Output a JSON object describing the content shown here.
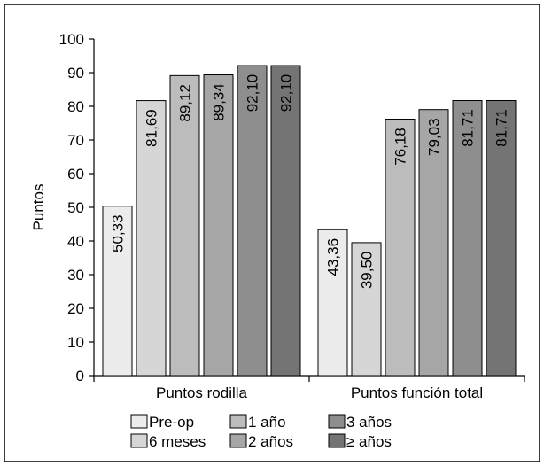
{
  "chart_data": {
    "type": "bar",
    "ylabel": "Puntos",
    "ylim": [
      0,
      100
    ],
    "yticks": [
      0,
      10,
      20,
      30,
      40,
      50,
      60,
      70,
      80,
      90,
      100
    ],
    "grid": false,
    "legend_position": "bottom",
    "categories": [
      "Puntos rodilla",
      "Puntos función total"
    ],
    "series": [
      {
        "name": "Pre-op",
        "color": "#ececec",
        "values": [
          50.33,
          43.36
        ],
        "labels": [
          "50,33",
          "43,36"
        ]
      },
      {
        "name": "6 meses",
        "color": "#d6d6d6",
        "values": [
          81.69,
          39.5
        ],
        "labels": [
          "81,69",
          "39,50"
        ]
      },
      {
        "name": "1 año",
        "color": "#bcbcbc",
        "values": [
          89.12,
          76.18
        ],
        "labels": [
          "89,12",
          "76,18"
        ]
      },
      {
        "name": "2 años",
        "color": "#a6a6a6",
        "values": [
          89.34,
          79.03
        ],
        "labels": [
          "89,34",
          "79,03"
        ]
      },
      {
        "name": "3 años",
        "color": "#8e8e8e",
        "values": [
          92.1,
          81.71
        ],
        "labels": [
          "92,10",
          "81,71"
        ]
      },
      {
        "name": "≥ años",
        "color": "#747474",
        "values": [
          92.1,
          81.71
        ],
        "labels": [
          "92,10",
          "81,71"
        ]
      }
    ],
    "legend_order": [
      "Pre-op",
      "6 meses",
      "1 año",
      "2 años",
      "3 años",
      "≥ años"
    ]
  }
}
